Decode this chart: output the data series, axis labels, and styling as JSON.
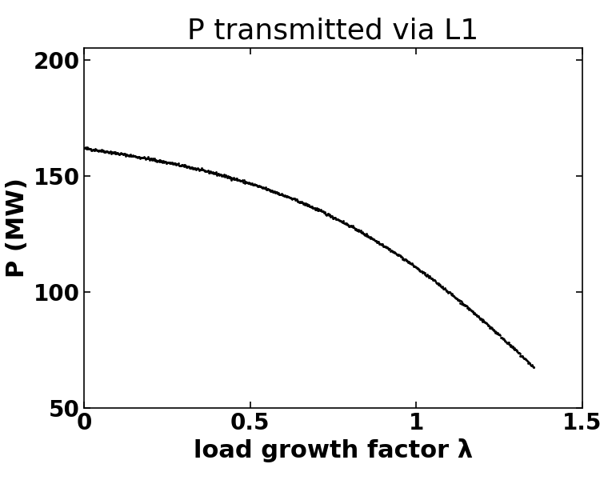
{
  "title": "P transmitted via L1",
  "xlabel": "load growth factor λ",
  "ylabel": "P (MW)",
  "xlim": [
    0,
    1.5
  ],
  "ylim": [
    50,
    205
  ],
  "xticks": [
    0,
    0.5,
    1.0,
    1.5
  ],
  "yticks": [
    50,
    100,
    150,
    200
  ],
  "ctrl_lam": [
    0.0,
    0.2,
    0.4,
    0.6,
    0.8,
    0.95,
    1.05,
    1.15,
    1.25,
    1.32,
    1.355
  ],
  "ctrl_p": [
    162,
    157,
    151,
    142,
    128,
    115,
    106,
    95,
    80,
    72,
    68
  ],
  "title_fontsize": 26,
  "label_fontsize": 22,
  "tick_fontsize": 20,
  "background_color": "#ffffff",
  "num_points": 800,
  "markersize": 2.0
}
